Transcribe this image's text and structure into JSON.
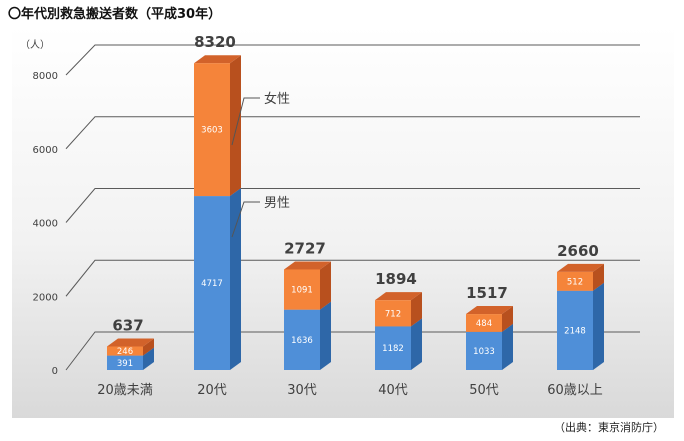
{
  "heading": "〇年代別救急搬送者数（平成30年）",
  "source": "（出典：東京消防庁）",
  "colors": {
    "male_front": "#4f8fd8",
    "male_side": "#2e67a8",
    "female_front": "#f5843a",
    "female_top": "#d2622a",
    "female_side": "#b8501e",
    "grid": "#5a5a5a",
    "text": "#404040"
  },
  "chart_data": {
    "type": "bar",
    "stacked": true,
    "three_d": true,
    "unit_label": "（人）",
    "categories": [
      "20歳未満",
      "20代",
      "30代",
      "40代",
      "50代",
      "60歳以上"
    ],
    "series": [
      {
        "name": "男性",
        "values": [
          391,
          4717,
          1636,
          1182,
          1033,
          2148
        ]
      },
      {
        "name": "女性",
        "values": [
          246,
          3603,
          1091,
          712,
          484,
          512
        ]
      }
    ],
    "totals": [
      637,
      8320,
      2727,
      1894,
      1517,
      2660
    ],
    "ylim": [
      0,
      8000
    ],
    "yticks": [
      0,
      2000,
      4000,
      6000,
      8000
    ],
    "grid": true,
    "legend": "callout labels on 20代 bar"
  }
}
